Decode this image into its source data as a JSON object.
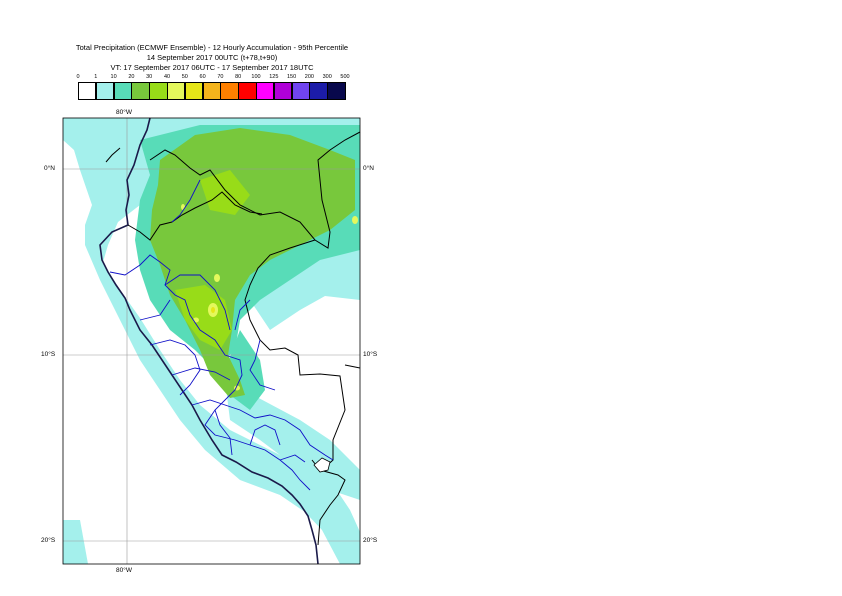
{
  "title": {
    "line1": "Total Precipitation (ECMWF Ensemble) - 12 Hourly Accumulation - 95th Percentile",
    "line2": "14 September 2017 00UTC (t+78,t+90)",
    "line3": "VT: 17 September 2017 06UTC - 17 September 2017 18UTC"
  },
  "legend": {
    "labels": [
      "0",
      "1",
      "10",
      "20",
      "30",
      "40",
      "50",
      "60",
      "70",
      "80",
      "100",
      "125",
      "150",
      "200",
      "300",
      "500"
    ],
    "colors": [
      "#ffffff",
      "#a4f0ec",
      "#58dcb8",
      "#78c83c",
      "#98dc18",
      "#e4f85c",
      "#e6e618",
      "#f4b41c",
      "#ff8000",
      "#ff0000",
      "#ff00ff",
      "#b000d8",
      "#7044f0",
      "#1c1ca8",
      "#08084c"
    ]
  },
  "axes": {
    "lon_top": "80°W",
    "lon_bottom": "80°W",
    "lat_left": [
      "0°N",
      "10°S",
      "20°S"
    ],
    "lat_right": [
      "0°N",
      "10°S",
      "20°S"
    ]
  }
}
